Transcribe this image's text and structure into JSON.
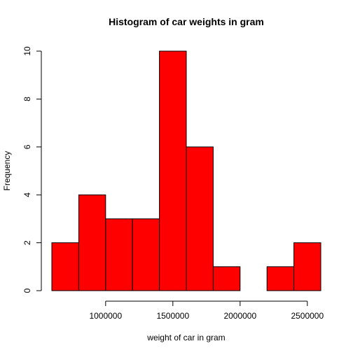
{
  "chart_data": {
    "type": "bar",
    "title": "Histogram of car weights in gram",
    "xlabel": "weight of car in gram",
    "ylabel": "Frequency",
    "bin_edges": [
      600000,
      800000,
      1000000,
      1200000,
      1400000,
      1600000,
      1800000,
      2000000,
      2200000,
      2400000,
      2600000
    ],
    "values": [
      2,
      4,
      3,
      3,
      10,
      6,
      1,
      0,
      1,
      2
    ],
    "bar_color": "#FF0000",
    "xlim": [
      600000,
      2600000
    ],
    "ylim": [
      0,
      10
    ],
    "x_ticks": [
      1000000,
      1500000,
      2000000,
      2500000
    ],
    "x_tick_labels": [
      "1000000",
      "1500000",
      "2000000",
      "2500000"
    ],
    "y_ticks": [
      0,
      2,
      4,
      6,
      8,
      10
    ],
    "y_tick_labels": [
      "0",
      "2",
      "4",
      "6",
      "8",
      "10"
    ],
    "grid": false,
    "legend": "none"
  }
}
